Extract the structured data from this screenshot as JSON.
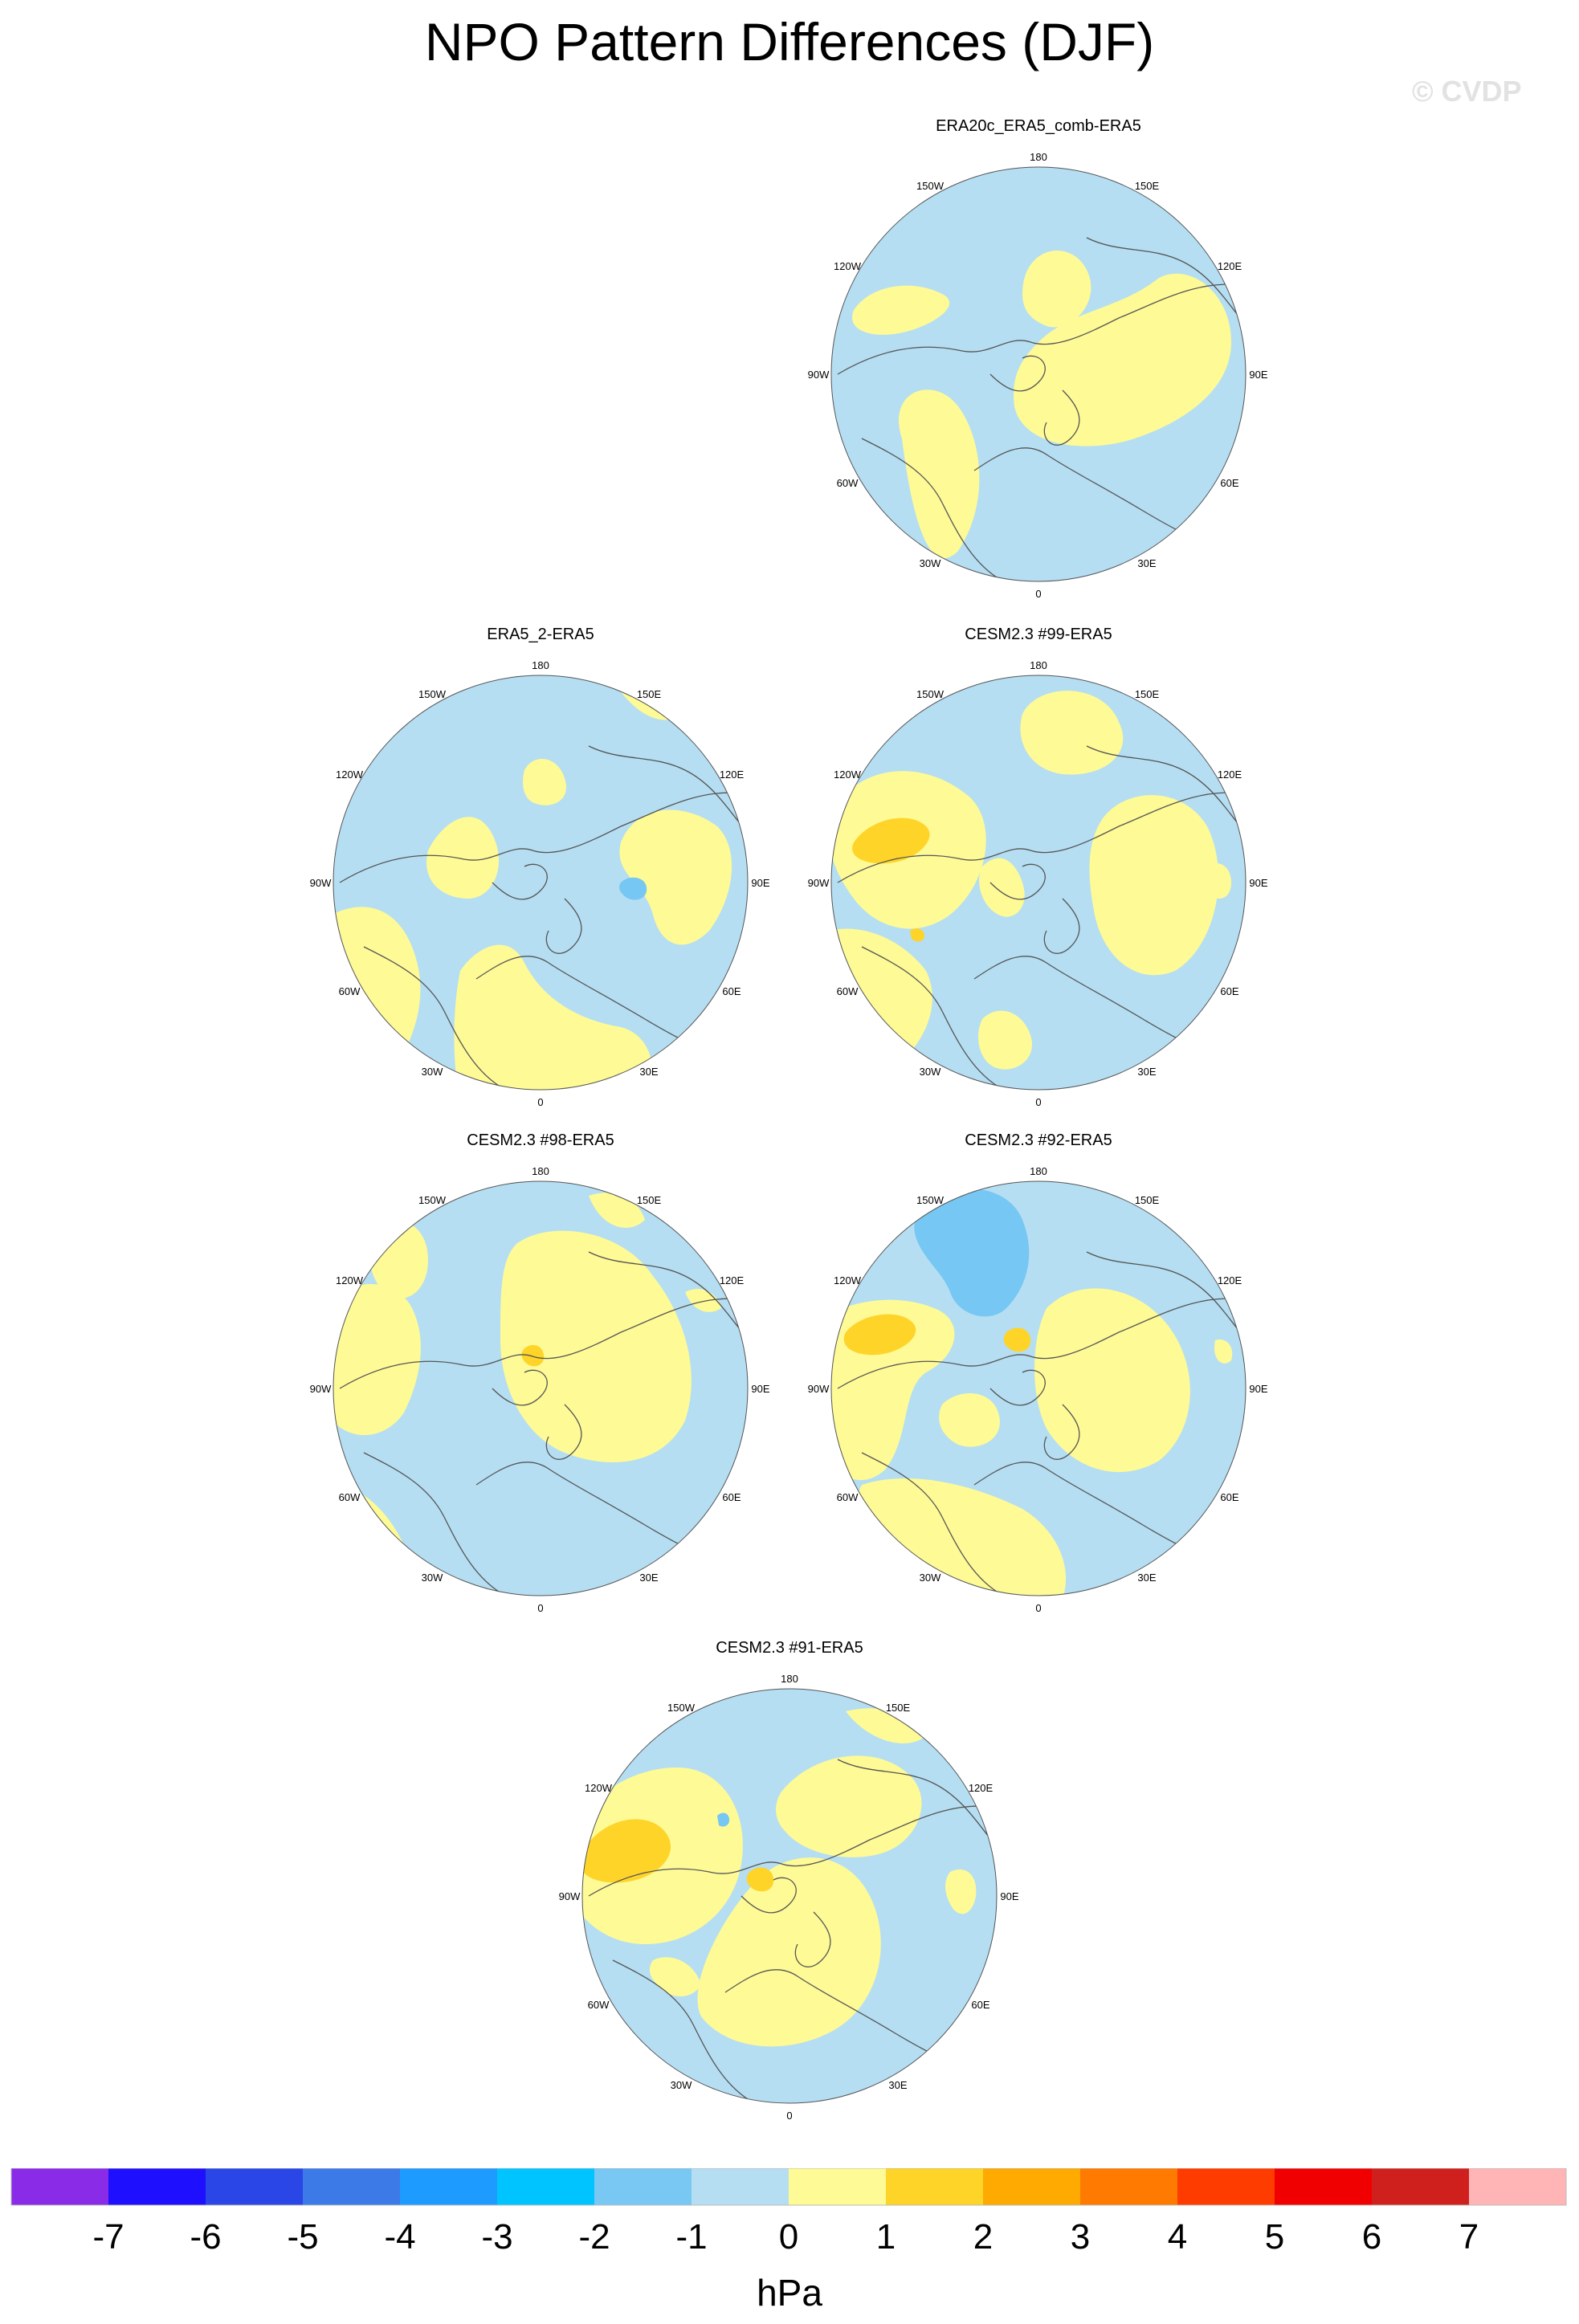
{
  "title": "NPO Pattern Differences (DJF)",
  "watermark": "© CVDP",
  "lon_labels": {
    "top": "180",
    "bottom": "0",
    "upper_left": "150W",
    "upper_right": "150E",
    "mid_upper_left": "120W",
    "mid_upper_right": "120E",
    "left": "90W",
    "right": "90E",
    "mid_lower_left": "60W",
    "mid_lower_right": "60E",
    "lower_left": "30W",
    "lower_right": "30E"
  },
  "colors": {
    "neg1": "#b5def2",
    "pos1": "#fefa96",
    "pos2": "#fed429",
    "neg2": "#76c7f3",
    "coast": "#555555"
  },
  "panels": [
    {
      "title": "ERA20c_ERA5_comb-ERA5"
    },
    {
      "title": "ERA5_2-ERA5"
    },
    {
      "title": "CESM2.3 #99-ERA5"
    },
    {
      "title": "CESM2.3 #98-ERA5"
    },
    {
      "title": "CESM2.3 #92-ERA5"
    },
    {
      "title": "CESM2.3 #91-ERA5"
    }
  ],
  "colorbar": {
    "unit": "hPa",
    "labels": [
      "-7",
      "-6",
      "-5",
      "-4",
      "-3",
      "-2",
      "-1",
      "0",
      "1",
      "2",
      "3",
      "4",
      "5",
      "6",
      "7"
    ],
    "colors": [
      "#8a2be8",
      "#1e10ff",
      "#2a46e6",
      "#3c7ae8",
      "#1e9bff",
      "#00c4ff",
      "#78c8f3",
      "#b5def2",
      "#fefa96",
      "#fed429",
      "#feaa00",
      "#ff7a00",
      "#ff3c00",
      "#f00000",
      "#d0201e",
      "#ffb5b5"
    ]
  }
}
